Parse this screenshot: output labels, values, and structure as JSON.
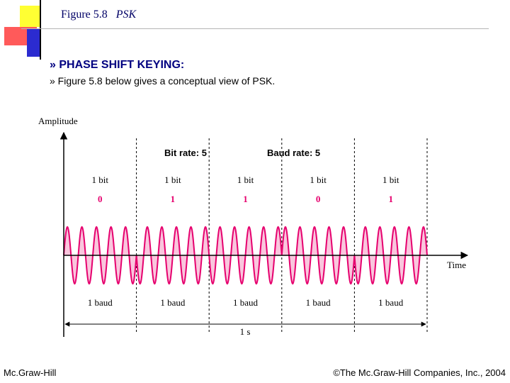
{
  "slide": {
    "figure_label": "Figure 5.8",
    "figure_title": "PSK",
    "bullet_main": "» PHASE SHIFT KEYING:",
    "bullet_sub": "» Figure 5.8 below gives a conceptual view of PSK."
  },
  "figure": {
    "y_axis_label": "Amplitude",
    "x_axis_label": "Time",
    "bit_rate_label": "Bit rate: 5",
    "baud_rate_label": "Baud rate: 5",
    "bit_unit_label": "1 bit",
    "baud_unit_label": "1 baud",
    "duration_label": "1 s",
    "bits": [
      0,
      1,
      1,
      0,
      1
    ],
    "cycles_per_bit": 5,
    "colors": {
      "signal": "#e6006e",
      "signal_fill": "#f9c6dd",
      "bit_value": "#e6006e"
    }
  },
  "footer": {
    "left": "Mc.Graw-Hill",
    "right": "©The Mc.Graw-Hill Companies, Inc., 2004"
  }
}
